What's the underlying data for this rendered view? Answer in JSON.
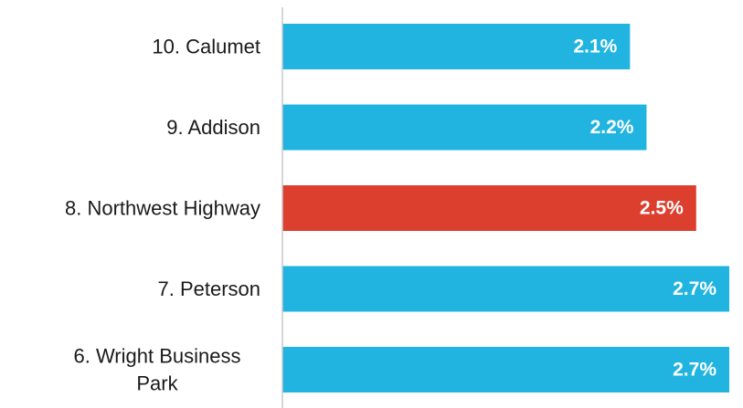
{
  "chart_data": {
    "type": "bar",
    "orientation": "horizontal",
    "categories": [
      "10. Calumet",
      "9. Addison",
      "8. Northwest Highway",
      "7. Peterson",
      "6. Wright Business Park"
    ],
    "values": [
      2.1,
      2.2,
      2.5,
      2.7,
      2.7
    ],
    "value_labels": [
      "2.1%",
      "2.2%",
      "2.5%",
      "2.7%",
      "2.7%"
    ],
    "highlight_index": 2,
    "xlim": [
      0,
      2.7
    ],
    "grid": false,
    "title": "",
    "xlabel": "",
    "ylabel": ""
  },
  "colors": {
    "bar": "#21b4e1",
    "highlight": "#dc3f2e",
    "axis": "#c8c8c8"
  }
}
